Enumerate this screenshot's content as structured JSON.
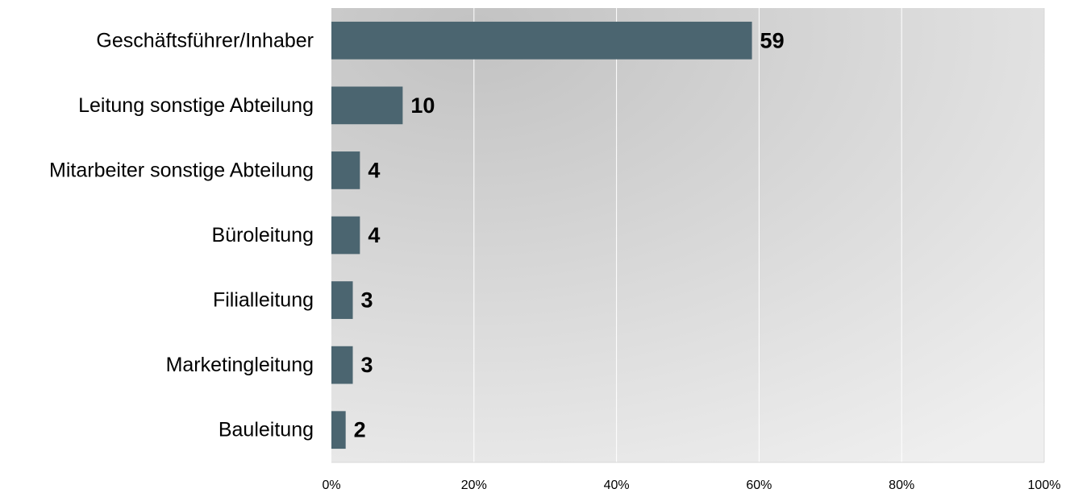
{
  "chart_data": {
    "type": "bar",
    "orientation": "horizontal",
    "categories": [
      "Geschäftsführer/Inhaber",
      "Leitung sonstige Abteilung",
      "Mitarbeiter sonstige Abteilung",
      "Büroleitung",
      "Filialleitung",
      "Marketingleitung",
      "Bauleitung"
    ],
    "values": [
      59,
      10,
      4,
      4,
      3,
      3,
      2
    ],
    "value_labels": [
      "59",
      "10",
      "4",
      "4",
      "3",
      "3",
      "2"
    ],
    "xlim": [
      0,
      100
    ],
    "x_ticks": [
      "0%",
      "20%",
      "40%",
      "60%",
      "80%",
      "100%"
    ],
    "title": "",
    "xlabel": "",
    "ylabel": "",
    "grid": "vertical",
    "legend": "none",
    "colors": {
      "bar": "#4b6570",
      "plot_bg_dark": "#c2c2c2",
      "plot_bg_light": "#efefef",
      "gridline": "#ffffff"
    }
  }
}
